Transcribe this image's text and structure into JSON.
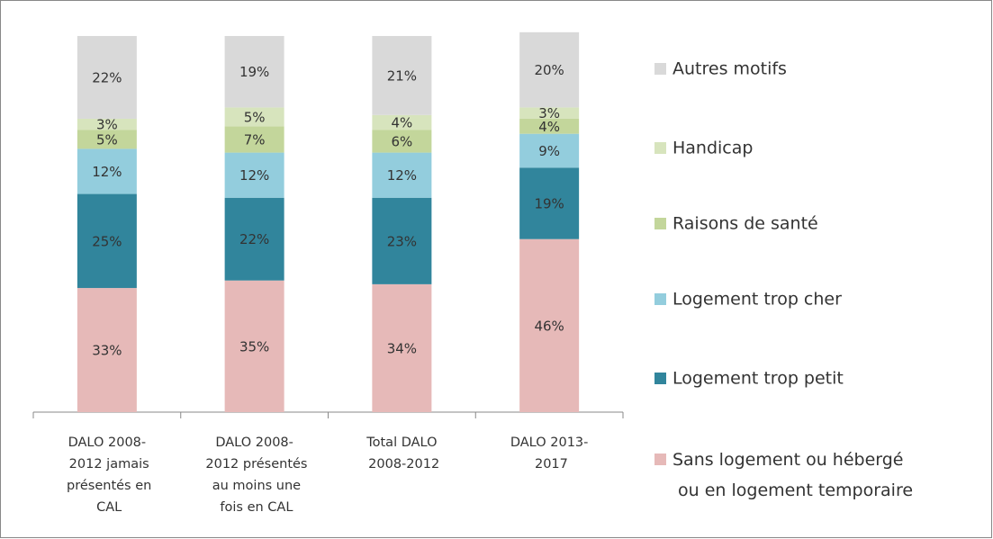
{
  "chart_data": {
    "type": "stacked_bar",
    "categories": [
      "DALO 2008-\n2012 jamais\nprésentés en\nCAL",
      "DALO 2008-\n2012 présentés\nau moins une\nfois en CAL",
      "Total DALO\n2008-2012",
      "DALO 2013-\n2017"
    ],
    "series": [
      {
        "name": "Autres motifs",
        "color": "#d9d9d9",
        "values": [
          22,
          19,
          21,
          20
        ],
        "value_labels": [
          "22%",
          "19%",
          "21%",
          "20%"
        ]
      },
      {
        "name": "Handicap",
        "color": "#d7e4bd",
        "values": [
          3,
          5,
          4,
          3
        ],
        "value_labels": [
          "3%",
          "5%",
          "4%",
          "3%"
        ]
      },
      {
        "name": "Raisons de santé",
        "color": "#c3d69b",
        "values": [
          5,
          7,
          6,
          4
        ],
        "value_labels": [
          "5%",
          "7%",
          "6%",
          "4%"
        ]
      },
      {
        "name": "Logement trop cher",
        "color": "#93cddd",
        "values": [
          12,
          12,
          12,
          9
        ],
        "value_labels": [
          "12%",
          "12%",
          "12%",
          "9%"
        ]
      },
      {
        "name": "Logement trop petit",
        "color": "#31859c",
        "values": [
          25,
          22,
          23,
          19
        ],
        "value_labels": [
          "25%",
          "22%",
          "23%",
          "19%"
        ]
      },
      {
        "name": "Sans logement ou hébergé\nou en logement temporaire",
        "color": "#e6b9b8",
        "values": [
          33,
          35,
          34,
          46
        ],
        "value_labels": [
          "33%",
          "35%",
          "34%",
          "46%"
        ]
      }
    ],
    "ylim": [
      0,
      100
    ],
    "legend": "right"
  }
}
